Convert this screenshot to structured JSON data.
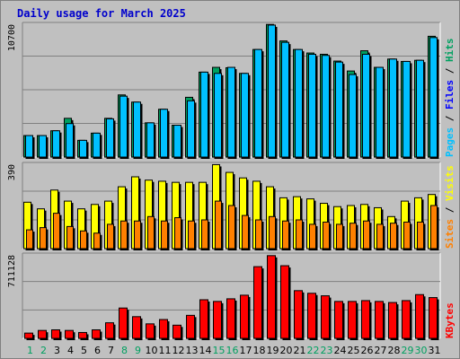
{
  "title": "Daily usage for March 2025",
  "chart_data": [
    {
      "type": "bar",
      "name": "pages-files-hits",
      "categories": [
        "1",
        "2",
        "3",
        "4",
        "5",
        "6",
        "7",
        "8",
        "9",
        "10",
        "11",
        "12",
        "13",
        "14",
        "15",
        "16",
        "17",
        "18",
        "19",
        "20",
        "21",
        "22",
        "23",
        "24",
        "25",
        "26",
        "27",
        "28",
        "29",
        "30",
        "31"
      ],
      "weekend_days": [
        "1",
        "2",
        "8",
        "9",
        "15",
        "16",
        "22",
        "23",
        "29",
        "30"
      ],
      "ymax_label": "10700",
      "ylim": [
        0,
        10700
      ],
      "series_colors": {
        "Hits": "#00a060",
        "Files": "#0000ff",
        "Pages": "#00c0ff"
      },
      "legend": [
        {
          "text": "Pages",
          "color": "#00c0ff"
        },
        {
          "text": " / ",
          "color": "#000000"
        },
        {
          "text": "Files",
          "color": "#0000ff"
        },
        {
          "text": " / ",
          "color": "#000000"
        },
        {
          "text": "Hits",
          "color": "#00a060"
        }
      ],
      "series": [
        {
          "name": "Hits",
          "values": [
            1710,
            1710,
            2090,
            3080,
            1330,
            1900,
            3080,
            4940,
            4370,
            2720,
            3800,
            2530,
            4750,
            6750,
            7130,
            7100,
            6650,
            8550,
            10540,
            9230,
            8550,
            8270,
            8170,
            7630,
            6840,
            8450,
            7130,
            7790,
            7600,
            7690,
            9600
          ]
        },
        {
          "name": "Pages",
          "values": [
            1710,
            1710,
            2090,
            2660,
            1330,
            1900,
            3040,
            4840,
            4370,
            2720,
            3800,
            2530,
            4470,
            6750,
            6650,
            7130,
            6650,
            8550,
            10490,
            9120,
            8550,
            8170,
            8080,
            7550,
            6560,
            8170,
            7130,
            7790,
            7600,
            7690,
            9500
          ]
        }
      ]
    },
    {
      "type": "bar",
      "name": "sites-visits",
      "ymax_label": "390",
      "ylim": [
        0,
        390
      ],
      "series_colors": {
        "Visits": "#ffff00",
        "Sites": "#ff8000"
      },
      "legend": [
        {
          "text": "Sites",
          "color": "#ff8000"
        },
        {
          "text": " / ",
          "color": "#000000"
        },
        {
          "text": "Visits",
          "color": "#ffff00"
        }
      ],
      "series": [
        {
          "name": "Visits",
          "values": [
            210,
            180,
            265,
            215,
            180,
            200,
            215,
            280,
            325,
            310,
            305,
            300,
            300,
            300,
            380,
            345,
            320,
            305,
            280,
            230,
            235,
            225,
            205,
            190,
            195,
            200,
            185,
            145,
            215,
            230,
            245
          ]
        },
        {
          "name": "Sites",
          "values": [
            85,
            95,
            160,
            100,
            80,
            70,
            110,
            125,
            125,
            145,
            125,
            140,
            125,
            130,
            215,
            195,
            150,
            130,
            145,
            125,
            130,
            110,
            120,
            110,
            115,
            125,
            110,
            115,
            120,
            120,
            195
          ]
        }
      ]
    },
    {
      "type": "bar",
      "name": "kbytes",
      "ymax_label": "711128",
      "ylim": [
        0,
        711128
      ],
      "series_colors": {
        "KBytes": "#ff0000"
      },
      "legend": [
        {
          "text": "KBytes",
          "color": "#ff0000"
        }
      ],
      "series": [
        {
          "name": "KBytes",
          "values": [
            44000,
            66000,
            71000,
            66000,
            49000,
            71000,
            130000,
            253000,
            181000,
            121000,
            157000,
            110000,
            192000,
            322000,
            308000,
            330000,
            360000,
            598000,
            690000,
            606000,
            398000,
            376000,
            355000,
            308000,
            308000,
            315000,
            308000,
            299000,
            315000,
            365000,
            340000
          ]
        }
      ]
    }
  ]
}
